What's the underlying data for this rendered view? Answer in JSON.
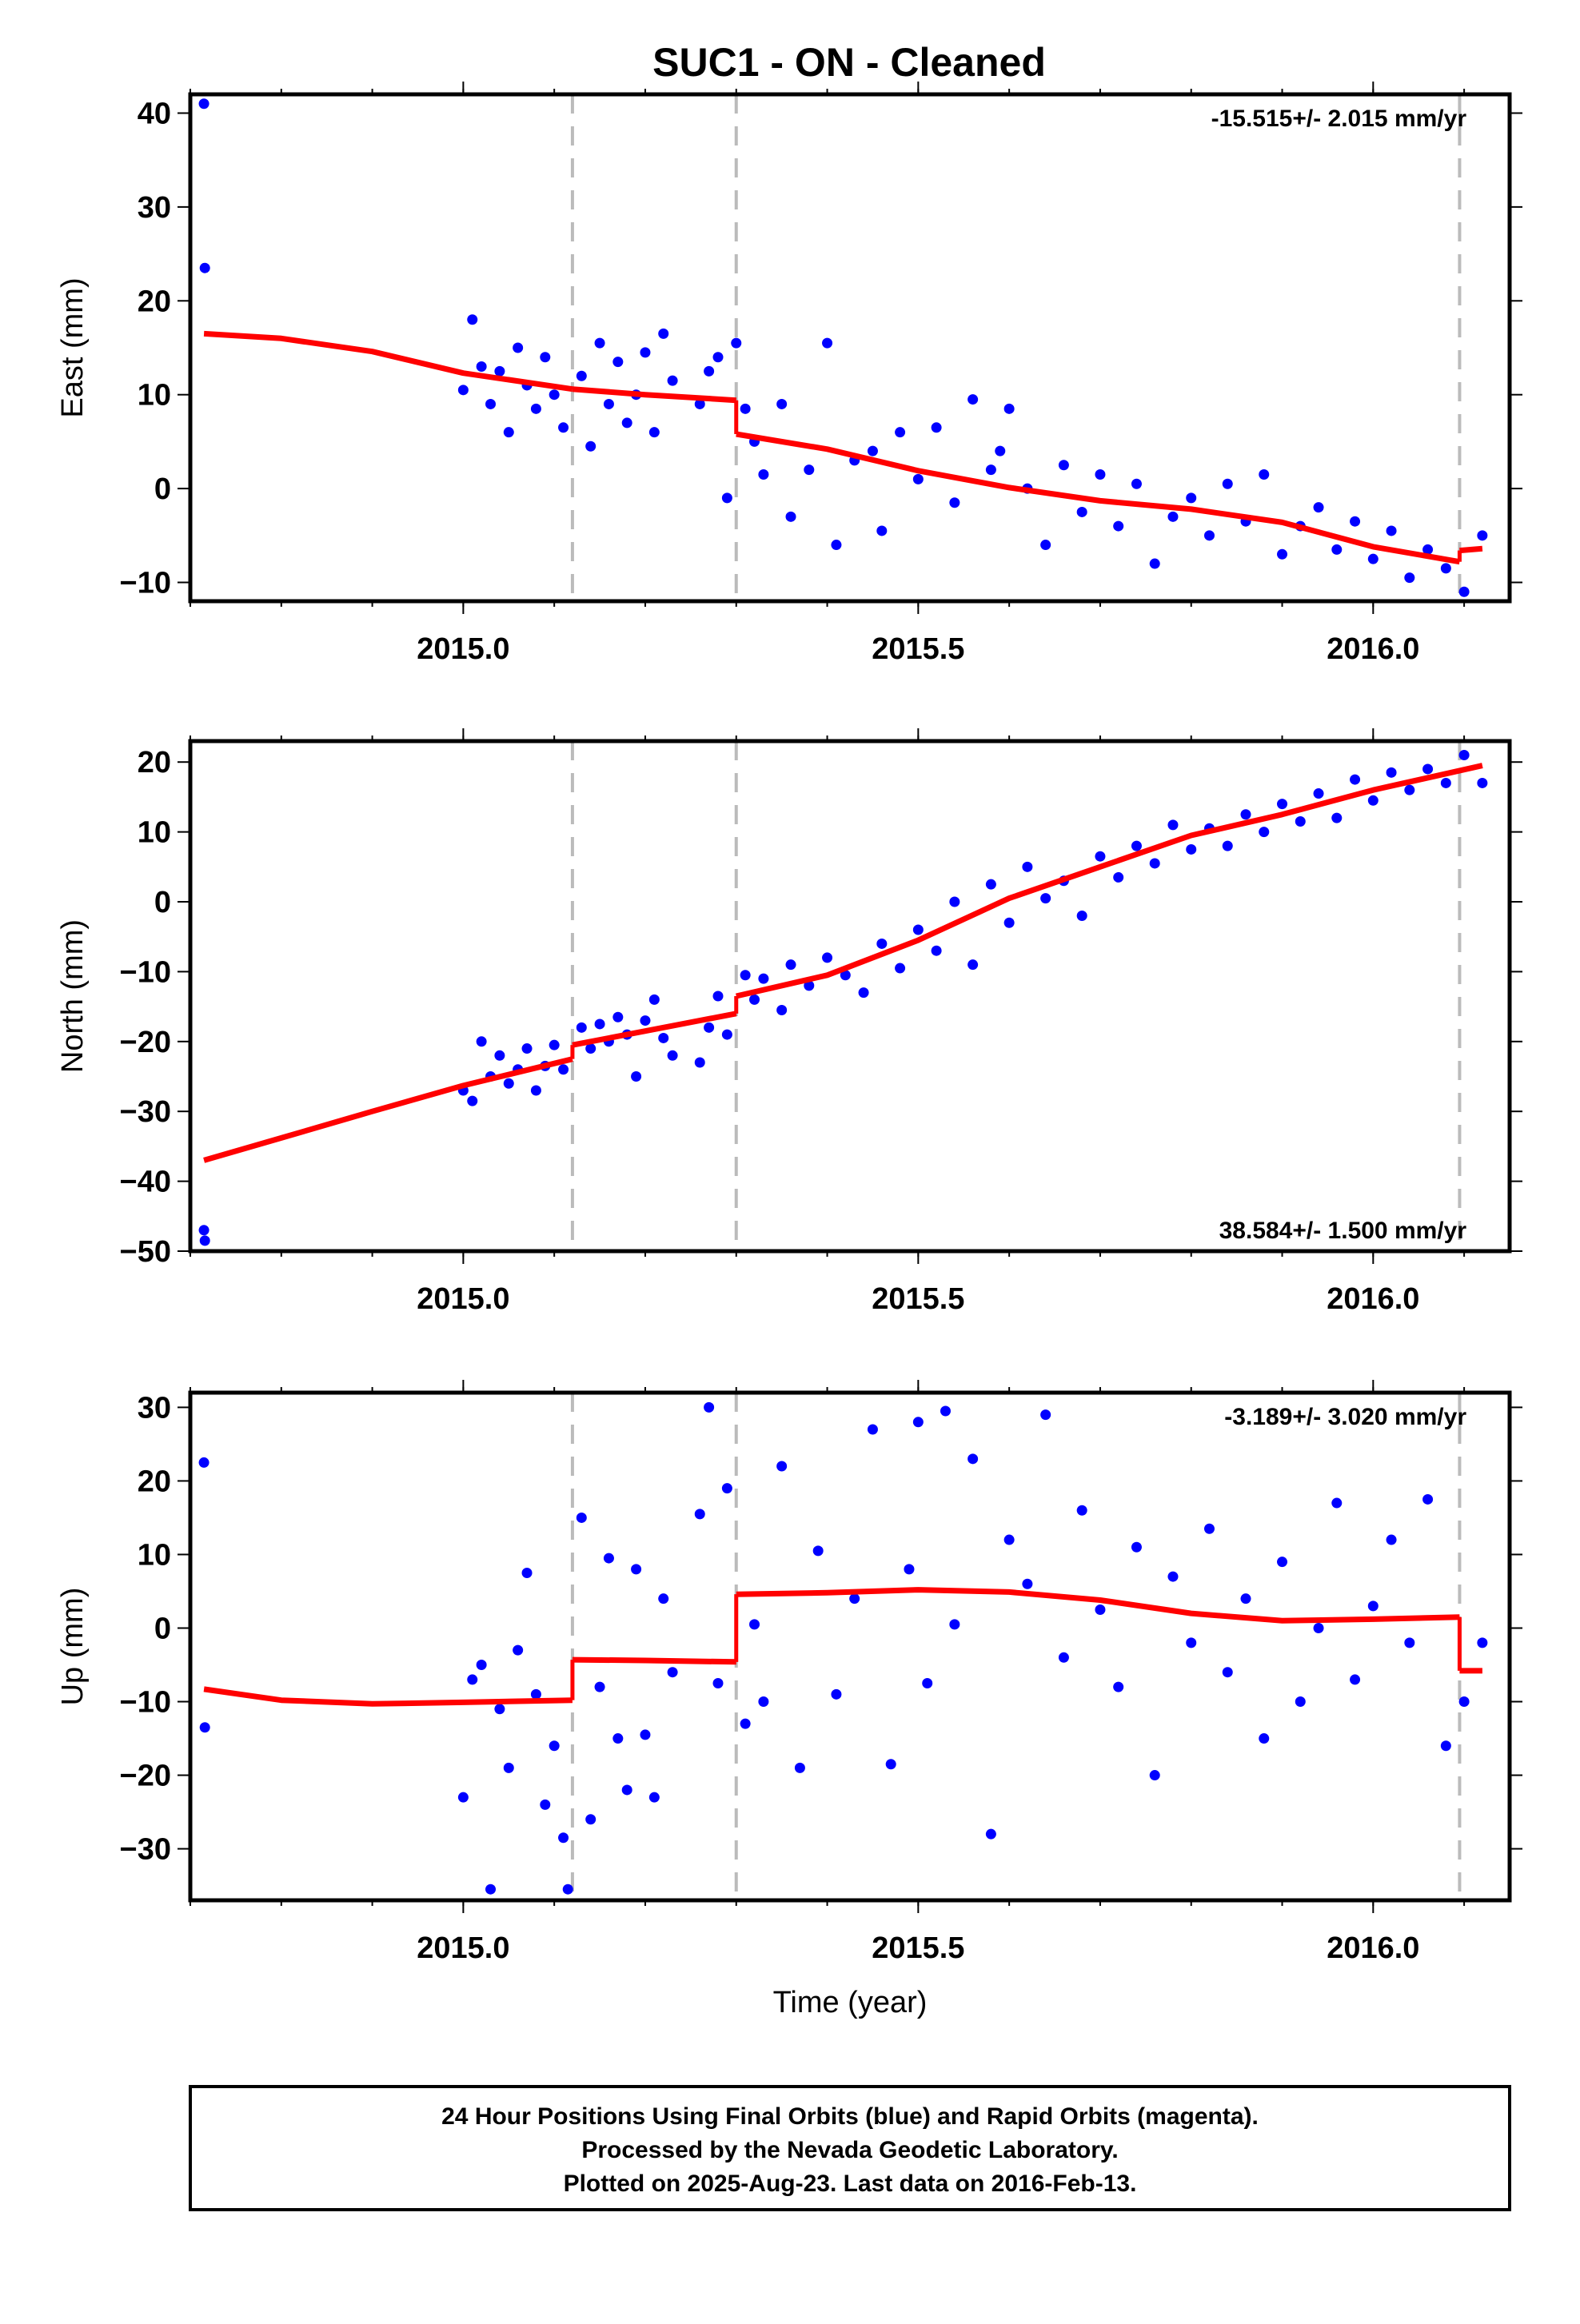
{
  "title": "SUC1  - ON - Cleaned",
  "footer": {
    "lines": [
      "24 Hour Positions Using Final Orbits (blue) and Rapid Orbits (magenta).",
      "Processed by the Nevada Geodetic Laboratory.",
      "Plotted on 2025-Aug-23. Last data on 2016-Feb-13."
    ]
  },
  "colors": {
    "final_orbits": "#0000ff",
    "model": "#ff0000",
    "event_lines": "#bbbbbb",
    "frame": "#000000"
  },
  "chart_data": [
    {
      "type": "scatter",
      "name": "east",
      "ylabel": "East (mm)",
      "xlabel": "",
      "xlim": [
        2014.7,
        2016.15
      ],
      "ylim": [
        -12,
        42
      ],
      "xticks": [
        2015.0,
        2015.5,
        2016.0
      ],
      "xtick_labels": [
        "2015.0",
        "2015.5",
        "2016.0"
      ],
      "yticks": [
        40,
        30,
        20,
        10,
        0,
        -10
      ],
      "ytick_labels": [
        "40",
        "30",
        "20",
        "10",
        "0",
        "−10"
      ],
      "rate_label": "-15.515+/- 2.015 mm/yr",
      "rate_position": "top-right",
      "event_lines": [
        2015.12,
        2015.3,
        2016.095
      ],
      "model_segments": [
        [
          [
            2014.715,
            16.5
          ],
          [
            2014.8,
            16.0
          ],
          [
            2014.9,
            14.6
          ],
          [
            2015.0,
            12.3
          ],
          [
            2015.12,
            10.6
          ]
        ],
        [
          [
            2015.12,
            10.6
          ],
          [
            2015.2,
            10.0
          ],
          [
            2015.3,
            9.4
          ]
        ],
        [
          [
            2015.3,
            5.8
          ],
          [
            2015.4,
            4.2
          ],
          [
            2015.5,
            1.9
          ],
          [
            2015.6,
            0.1
          ],
          [
            2015.7,
            -1.3
          ],
          [
            2015.8,
            -2.2
          ],
          [
            2015.9,
            -3.6
          ],
          [
            2016.0,
            -6.2
          ],
          [
            2016.095,
            -7.8
          ]
        ],
        [
          [
            2016.095,
            -6.6
          ],
          [
            2016.12,
            -6.4
          ]
        ]
      ],
      "points": {
        "x": [
          2014.715,
          2014.716,
          2015.0,
          2015.01,
          2015.02,
          2015.03,
          2015.04,
          2015.05,
          2015.06,
          2015.07,
          2015.08,
          2015.09,
          2015.1,
          2015.11,
          2015.13,
          2015.14,
          2015.15,
          2015.16,
          2015.17,
          2015.18,
          2015.19,
          2015.2,
          2015.21,
          2015.22,
          2015.23,
          2015.26,
          2015.27,
          2015.28,
          2015.29,
          2015.3,
          2015.31,
          2015.32,
          2015.33,
          2015.35,
          2015.36,
          2015.38,
          2015.4,
          2015.41,
          2015.43,
          2015.45,
          2015.46,
          2015.48,
          2015.5,
          2015.52,
          2015.54,
          2015.56,
          2015.58,
          2015.59,
          2015.6,
          2015.62,
          2015.64,
          2015.66,
          2015.68,
          2015.7,
          2015.72,
          2015.74,
          2015.76,
          2015.78,
          2015.8,
          2015.82,
          2015.84,
          2015.86,
          2015.88,
          2015.9,
          2015.92,
          2015.94,
          2015.96,
          2015.98,
          2016.0,
          2016.02,
          2016.04,
          2016.06,
          2016.08,
          2016.1,
          2016.12
        ],
        "y": [
          41.0,
          23.5,
          10.5,
          18.0,
          13.0,
          9.0,
          12.5,
          6.0,
          15.0,
          11.0,
          8.5,
          14.0,
          10.0,
          6.5,
          12.0,
          4.5,
          15.5,
          9.0,
          13.5,
          7.0,
          10.0,
          14.5,
          6.0,
          16.5,
          11.5,
          9.0,
          12.5,
          14.0,
          -1.0,
          15.5,
          8.5,
          5.0,
          1.5,
          9.0,
          -3.0,
          2.0,
          15.5,
          -6.0,
          3.0,
          4.0,
          -4.5,
          6.0,
          1.0,
          6.5,
          -1.5,
          9.5,
          2.0,
          4.0,
          8.5,
          0.0,
          -6.0,
          2.5,
          -2.5,
          1.5,
          -4.0,
          0.5,
          -8.0,
          -3.0,
          -1.0,
          -5.0,
          0.5,
          -3.5,
          1.5,
          -7.0,
          -4.0,
          -2.0,
          -6.5,
          -3.5,
          -7.5,
          -4.5,
          -9.5,
          -6.5,
          -8.5,
          -11.0,
          -5.0
        ]
      }
    },
    {
      "type": "scatter",
      "name": "north",
      "ylabel": "North (mm)",
      "xlabel": "",
      "xlim": [
        2014.7,
        2016.15
      ],
      "ylim": [
        -50,
        23
      ],
      "xticks": [
        2015.0,
        2015.5,
        2016.0
      ],
      "xtick_labels": [
        "2015.0",
        "2015.5",
        "2016.0"
      ],
      "yticks": [
        20,
        10,
        0,
        -10,
        -20,
        -30,
        -40,
        -50
      ],
      "ytick_labels": [
        "20",
        "10",
        "0",
        "−10",
        "−20",
        "−30",
        "−40",
        "−50"
      ],
      "rate_label": "38.584+/- 1.500 mm/yr",
      "rate_position": "bottom-right",
      "event_lines": [
        2015.12,
        2015.3,
        2016.095
      ],
      "model_segments": [
        [
          [
            2014.715,
            -37.0
          ],
          [
            2014.8,
            -33.8
          ],
          [
            2014.9,
            -30.0
          ],
          [
            2015.0,
            -26.3
          ],
          [
            2015.12,
            -22.5
          ]
        ],
        [
          [
            2015.12,
            -20.5
          ],
          [
            2015.2,
            -18.5
          ],
          [
            2015.3,
            -16.0
          ]
        ],
        [
          [
            2015.3,
            -13.5
          ],
          [
            2015.4,
            -10.5
          ],
          [
            2015.5,
            -5.5
          ],
          [
            2015.6,
            0.5
          ],
          [
            2015.7,
            5.0
          ],
          [
            2015.8,
            9.5
          ],
          [
            2015.9,
            12.5
          ],
          [
            2016.0,
            16.0
          ],
          [
            2016.12,
            19.5
          ]
        ]
      ],
      "points": {
        "x": [
          2014.715,
          2014.716,
          2015.0,
          2015.01,
          2015.02,
          2015.03,
          2015.04,
          2015.05,
          2015.06,
          2015.07,
          2015.08,
          2015.09,
          2015.1,
          2015.11,
          2015.13,
          2015.14,
          2015.15,
          2015.16,
          2015.17,
          2015.18,
          2015.19,
          2015.2,
          2015.21,
          2015.22,
          2015.23,
          2015.26,
          2015.27,
          2015.28,
          2015.29,
          2015.31,
          2015.32,
          2015.33,
          2015.35,
          2015.36,
          2015.38,
          2015.4,
          2015.42,
          2015.44,
          2015.46,
          2015.48,
          2015.5,
          2015.52,
          2015.54,
          2015.56,
          2015.58,
          2015.6,
          2015.62,
          2015.64,
          2015.66,
          2015.68,
          2015.7,
          2015.72,
          2015.74,
          2015.76,
          2015.78,
          2015.8,
          2015.82,
          2015.84,
          2015.86,
          2015.88,
          2015.9,
          2015.92,
          2015.94,
          2015.96,
          2015.98,
          2016.0,
          2016.02,
          2016.04,
          2016.06,
          2016.08,
          2016.1,
          2016.12
        ],
        "y": [
          -47.0,
          -48.5,
          -27.0,
          -28.5,
          -20.0,
          -25.0,
          -22.0,
          -26.0,
          -24.0,
          -21.0,
          -27.0,
          -23.5,
          -20.5,
          -24.0,
          -18.0,
          -21.0,
          -17.5,
          -20.0,
          -16.5,
          -19.0,
          -25.0,
          -17.0,
          -14.0,
          -19.5,
          -22.0,
          -23.0,
          -18.0,
          -13.5,
          -19.0,
          -10.5,
          -14.0,
          -11.0,
          -15.5,
          -9.0,
          -12.0,
          -8.0,
          -10.5,
          -13.0,
          -6.0,
          -9.5,
          -4.0,
          -7.0,
          0.0,
          -9.0,
          2.5,
          -3.0,
          5.0,
          0.5,
          3.0,
          -2.0,
          6.5,
          3.5,
          8.0,
          5.5,
          11.0,
          7.5,
          10.5,
          8.0,
          12.5,
          10.0,
          14.0,
          11.5,
          15.5,
          12.0,
          17.5,
          14.5,
          18.5,
          16.0,
          19.0,
          17.0,
          21.0,
          17.0
        ]
      }
    },
    {
      "type": "scatter",
      "name": "up",
      "ylabel": "Up (mm)",
      "xlabel": "Time (year)",
      "xlim": [
        2014.7,
        2016.15
      ],
      "ylim": [
        -37,
        32
      ],
      "xticks": [
        2015.0,
        2015.5,
        2016.0
      ],
      "xtick_labels": [
        "2015.0",
        "2015.5",
        "2016.0"
      ],
      "yticks": [
        30,
        20,
        10,
        0,
        -10,
        -20,
        -30
      ],
      "ytick_labels": [
        "30",
        "20",
        "10",
        "0",
        "−10",
        "−20",
        "−30"
      ],
      "rate_label": "-3.189+/- 3.020 mm/yr",
      "rate_position": "top-right",
      "event_lines": [
        2015.12,
        2015.3,
        2016.095
      ],
      "model_segments": [
        [
          [
            2014.715,
            -8.3
          ],
          [
            2014.8,
            -9.8
          ],
          [
            2014.9,
            -10.3
          ],
          [
            2015.0,
            -10.1
          ],
          [
            2015.12,
            -9.8
          ]
        ],
        [
          [
            2015.12,
            -4.3
          ],
          [
            2015.2,
            -4.4
          ],
          [
            2015.3,
            -4.6
          ]
        ],
        [
          [
            2015.3,
            4.6
          ],
          [
            2015.4,
            4.8
          ],
          [
            2015.5,
            5.2
          ],
          [
            2015.6,
            4.9
          ],
          [
            2015.7,
            3.8
          ],
          [
            2015.8,
            2.0
          ],
          [
            2015.9,
            1.0
          ],
          [
            2016.0,
            1.2
          ],
          [
            2016.095,
            1.5
          ]
        ],
        [
          [
            2016.095,
            -5.8
          ],
          [
            2016.12,
            -5.8
          ]
        ]
      ],
      "points": {
        "x": [
          2014.715,
          2014.716,
          2015.0,
          2015.01,
          2015.02,
          2015.03,
          2015.04,
          2015.05,
          2015.06,
          2015.07,
          2015.08,
          2015.09,
          2015.1,
          2015.11,
          2015.115,
          2015.13,
          2015.14,
          2015.15,
          2015.16,
          2015.17,
          2015.18,
          2015.19,
          2015.2,
          2015.21,
          2015.22,
          2015.23,
          2015.26,
          2015.27,
          2015.28,
          2015.29,
          2015.31,
          2015.32,
          2015.33,
          2015.35,
          2015.37,
          2015.39,
          2015.41,
          2015.43,
          2015.45,
          2015.47,
          2015.49,
          2015.5,
          2015.51,
          2015.53,
          2015.54,
          2015.56,
          2015.58,
          2015.6,
          2015.62,
          2015.64,
          2015.66,
          2015.68,
          2015.7,
          2015.72,
          2015.74,
          2015.76,
          2015.78,
          2015.8,
          2015.82,
          2015.84,
          2015.86,
          2015.88,
          2015.9,
          2015.92,
          2015.94,
          2015.96,
          2015.98,
          2016.0,
          2016.02,
          2016.04,
          2016.06,
          2016.08,
          2016.1,
          2016.12
        ],
        "y": [
          22.5,
          -13.5,
          -23.0,
          -7.0,
          -5.0,
          -35.5,
          -11.0,
          -19.0,
          -3.0,
          7.5,
          -9.0,
          -24.0,
          -16.0,
          -28.5,
          -35.5,
          15.0,
          -26.0,
          -8.0,
          9.5,
          -15.0,
          -22.0,
          8.0,
          -14.5,
          -23.0,
          4.0,
          -6.0,
          15.5,
          30.0,
          -7.5,
          19.0,
          -13.0,
          0.5,
          -10.0,
          22.0,
          -19.0,
          10.5,
          -9.0,
          4.0,
          27.0,
          -18.5,
          8.0,
          28.0,
          -7.5,
          29.5,
          0.5,
          23.0,
          -28.0,
          12.0,
          6.0,
          29.0,
          -4.0,
          16.0,
          2.5,
          -8.0,
          11.0,
          -20.0,
          7.0,
          -2.0,
          13.5,
          -6.0,
          4.0,
          -15.0,
          9.0,
          -10.0,
          0.0,
          17.0,
          -7.0,
          3.0,
          12.0,
          -2.0,
          17.5,
          -16.0,
          -10.0,
          -2.0
        ]
      }
    }
  ]
}
